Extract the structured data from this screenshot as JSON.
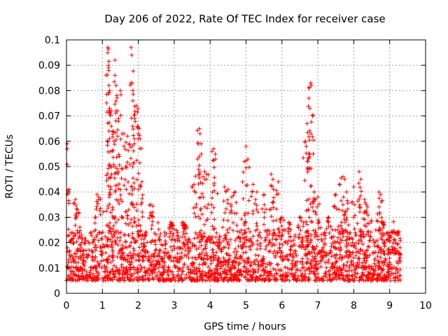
{
  "chart_data": {
    "type": "scatter",
    "title": "Day 206 of 2022, Rate Of TEC Index for receiver case",
    "xlabel": "GPS time / hours",
    "ylabel": "ROTI / TECUs",
    "xlim": [
      0,
      10
    ],
    "ylim": [
      0,
      0.1
    ],
    "x_ticks": [
      "0",
      "1",
      "2",
      "3",
      "4",
      "5",
      "6",
      "7",
      "8",
      "9",
      "10"
    ],
    "y_ticks": [
      "0",
      "0.01",
      "0.02",
      "0.03",
      "0.04",
      "0.05",
      "0.06",
      "0.07",
      "0.08",
      "0.09",
      "0.1"
    ],
    "grid": true,
    "marker": "+",
    "color": "#ff0000",
    "x_range_hours": [
      0,
      9.3
    ],
    "baseline_band": [
      0.005,
      0.025
    ],
    "series": [
      {
        "name": "ROTI",
        "peaks": [
          {
            "x": 0.02,
            "y": 0.059
          },
          {
            "x": 0.02,
            "y": 0.057
          },
          {
            "x": 0.25,
            "y": 0.037
          },
          {
            "x": 0.3,
            "y": 0.033
          },
          {
            "x": 0.85,
            "y": 0.039
          },
          {
            "x": 0.9,
            "y": 0.038
          },
          {
            "x": 1.15,
            "y": 0.097
          },
          {
            "x": 1.15,
            "y": 0.095
          },
          {
            "x": 1.17,
            "y": 0.09
          },
          {
            "x": 1.17,
            "y": 0.089
          },
          {
            "x": 1.18,
            "y": 0.082
          },
          {
            "x": 1.2,
            "y": 0.08
          },
          {
            "x": 1.2,
            "y": 0.073
          },
          {
            "x": 1.22,
            "y": 0.071
          },
          {
            "x": 1.25,
            "y": 0.066
          },
          {
            "x": 1.3,
            "y": 0.064
          },
          {
            "x": 1.32,
            "y": 0.06
          },
          {
            "x": 1.35,
            "y": 0.092
          },
          {
            "x": 1.35,
            "y": 0.086
          },
          {
            "x": 1.38,
            "y": 0.082
          },
          {
            "x": 1.4,
            "y": 0.078
          },
          {
            "x": 1.42,
            "y": 0.072
          },
          {
            "x": 1.45,
            "y": 0.069
          },
          {
            "x": 1.5,
            "y": 0.08
          },
          {
            "x": 1.55,
            "y": 0.063
          },
          {
            "x": 1.6,
            "y": 0.058
          },
          {
            "x": 1.65,
            "y": 0.05
          },
          {
            "x": 1.7,
            "y": 0.062
          },
          {
            "x": 1.75,
            "y": 0.059
          },
          {
            "x": 1.8,
            "y": 0.097
          },
          {
            "x": 1.82,
            "y": 0.094
          },
          {
            "x": 1.83,
            "y": 0.083
          },
          {
            "x": 1.85,
            "y": 0.08
          },
          {
            "x": 1.85,
            "y": 0.076
          },
          {
            "x": 1.9,
            "y": 0.069
          },
          {
            "x": 1.95,
            "y": 0.074
          },
          {
            "x": 1.98,
            "y": 0.066
          },
          {
            "x": 2.0,
            "y": 0.063
          },
          {
            "x": 2.05,
            "y": 0.061
          },
          {
            "x": 2.1,
            "y": 0.044
          },
          {
            "x": 2.35,
            "y": 0.035
          },
          {
            "x": 2.4,
            "y": 0.032
          },
          {
            "x": 2.9,
            "y": 0.028
          },
          {
            "x": 2.95,
            "y": 0.027
          },
          {
            "x": 3.25,
            "y": 0.028
          },
          {
            "x": 3.3,
            "y": 0.027
          },
          {
            "x": 3.55,
            "y": 0.043
          },
          {
            "x": 3.65,
            "y": 0.053
          },
          {
            "x": 3.7,
            "y": 0.065
          },
          {
            "x": 3.72,
            "y": 0.063
          },
          {
            "x": 3.75,
            "y": 0.059
          },
          {
            "x": 3.85,
            "y": 0.048
          },
          {
            "x": 3.9,
            "y": 0.047
          },
          {
            "x": 4.05,
            "y": 0.056
          },
          {
            "x": 4.1,
            "y": 0.057
          },
          {
            "x": 4.15,
            "y": 0.053
          },
          {
            "x": 4.4,
            "y": 0.042
          },
          {
            "x": 4.5,
            "y": 0.041
          },
          {
            "x": 4.6,
            "y": 0.038
          },
          {
            "x": 4.7,
            "y": 0.04
          },
          {
            "x": 4.95,
            "y": 0.052
          },
          {
            "x": 5.0,
            "y": 0.058
          },
          {
            "x": 5.05,
            "y": 0.053
          },
          {
            "x": 5.2,
            "y": 0.043
          },
          {
            "x": 5.3,
            "y": 0.04
          },
          {
            "x": 5.5,
            "y": 0.039
          },
          {
            "x": 5.7,
            "y": 0.047
          },
          {
            "x": 5.75,
            "y": 0.045
          },
          {
            "x": 5.9,
            "y": 0.044
          },
          {
            "x": 6.0,
            "y": 0.03
          },
          {
            "x": 6.2,
            "y": 0.028
          },
          {
            "x": 6.5,
            "y": 0.03
          },
          {
            "x": 6.65,
            "y": 0.06
          },
          {
            "x": 6.7,
            "y": 0.067
          },
          {
            "x": 6.72,
            "y": 0.052
          },
          {
            "x": 6.75,
            "y": 0.077
          },
          {
            "x": 6.78,
            "y": 0.073
          },
          {
            "x": 6.8,
            "y": 0.083
          },
          {
            "x": 6.82,
            "y": 0.082
          },
          {
            "x": 6.85,
            "y": 0.07
          },
          {
            "x": 6.9,
            "y": 0.04
          },
          {
            "x": 7.0,
            "y": 0.038
          },
          {
            "x": 7.3,
            "y": 0.03
          },
          {
            "x": 7.5,
            "y": 0.039
          },
          {
            "x": 7.6,
            "y": 0.043
          },
          {
            "x": 7.7,
            "y": 0.046
          },
          {
            "x": 7.75,
            "y": 0.045
          },
          {
            "x": 7.8,
            "y": 0.04
          },
          {
            "x": 8.0,
            "y": 0.042
          },
          {
            "x": 8.15,
            "y": 0.048
          },
          {
            "x": 8.2,
            "y": 0.045
          },
          {
            "x": 8.3,
            "y": 0.037
          },
          {
            "x": 8.35,
            "y": 0.035
          },
          {
            "x": 8.7,
            "y": 0.04
          },
          {
            "x": 8.75,
            "y": 0.039
          },
          {
            "x": 8.8,
            "y": 0.028
          },
          {
            "x": 9.0,
            "y": 0.022
          },
          {
            "x": 9.2,
            "y": 0.023
          }
        ]
      }
    ]
  }
}
